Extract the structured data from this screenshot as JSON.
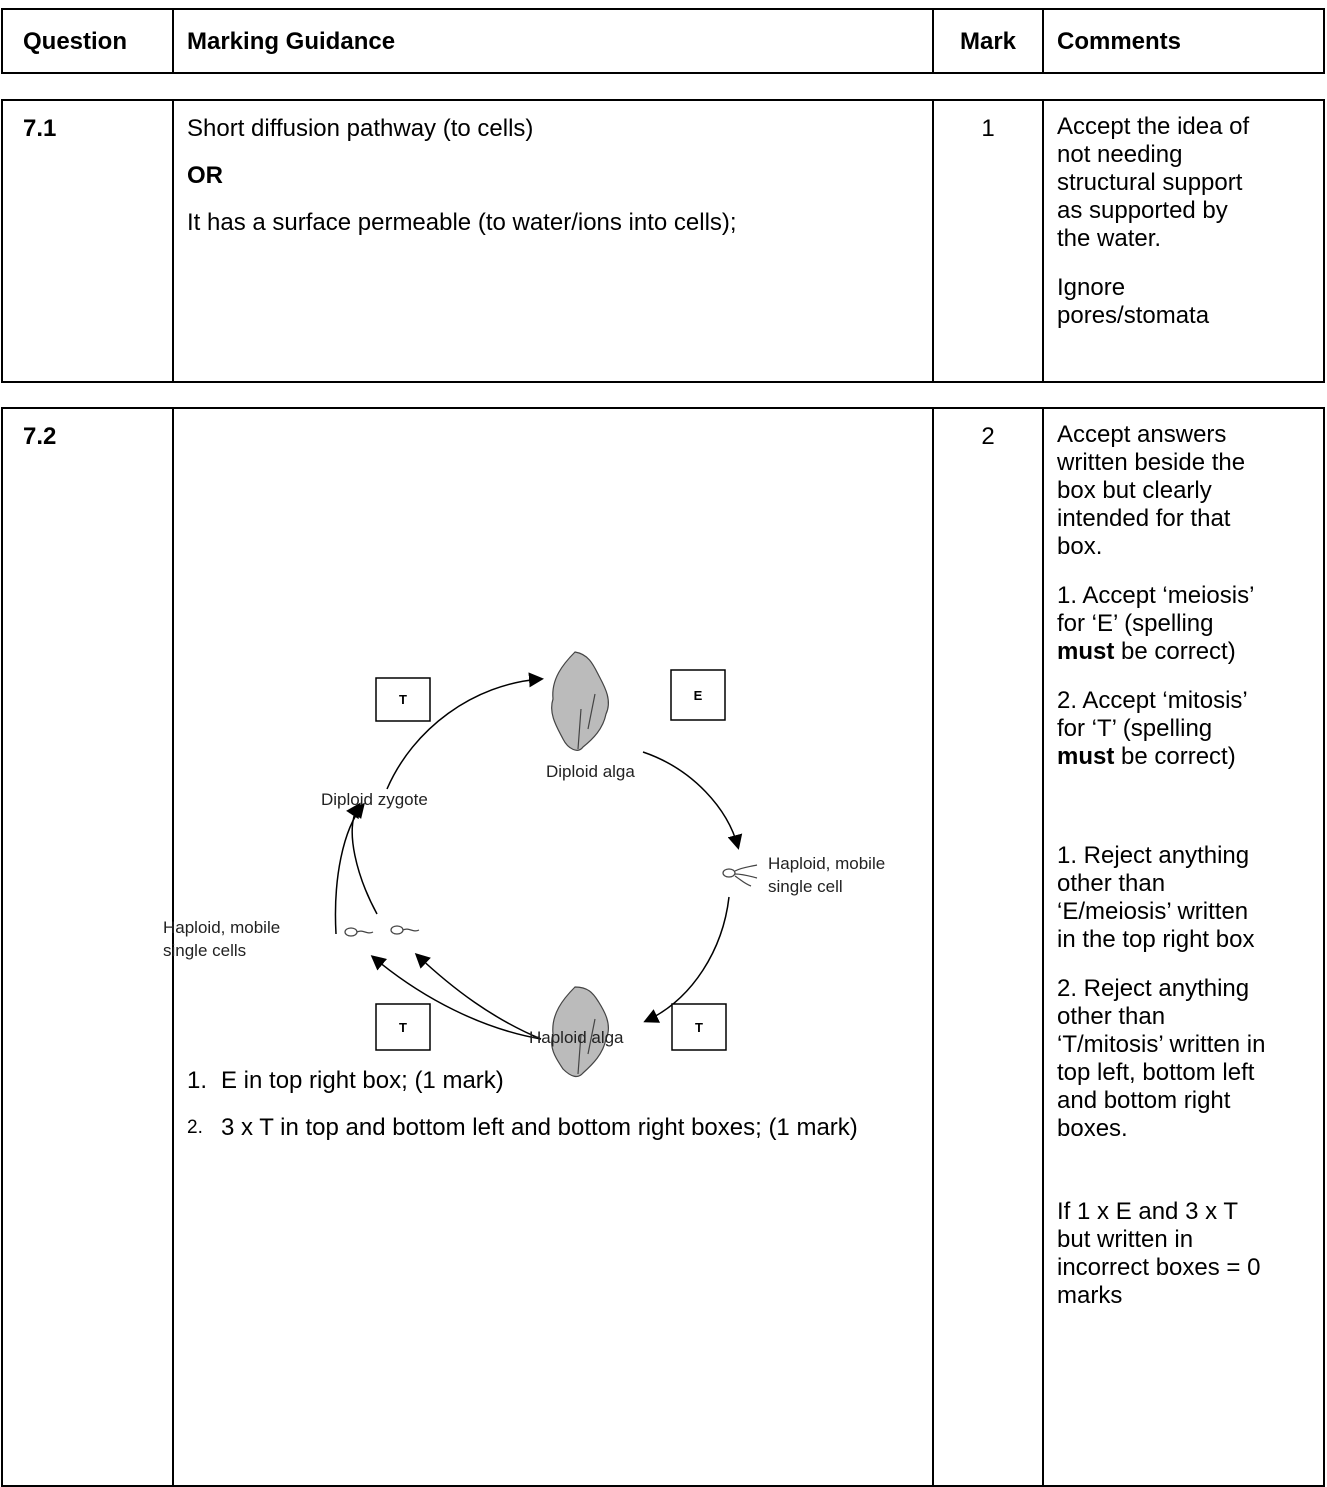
{
  "header": {
    "question": "Question",
    "guidance": "Marking Guidance",
    "mark": "Mark",
    "comments": "Comments"
  },
  "rows": [
    {
      "question": "7.1",
      "guidance": [
        "Short diffusion pathway (to cells)",
        "OR",
        "It has a surface permeable (to water/ions into cells);"
      ],
      "mark": 1,
      "comments": [
        [
          "Accept the idea of",
          "not needing",
          "structural support",
          "as supported by",
          "the water."
        ],
        [
          "Ignore",
          "pores/stomata"
        ]
      ]
    },
    {
      "question": "7.2",
      "diagram": {
        "boxes": [
          "T",
          "E",
          "T",
          "T"
        ],
        "labels": {
          "diploid_alga": [
            "Diploid alga"
          ],
          "diploid_zygote": [
            "Diploid zygote"
          ],
          "haploid_cell": [
            "Haploid, mobile",
            "single cell"
          ],
          "haploid_cells": [
            "Haploid, mobile",
            "single cells"
          ],
          "haploid_alga": [
            "Haploid alga"
          ]
        }
      },
      "guidance": [
        {
          "num": "1.",
          "text": "E in top right box; (1 mark)"
        },
        {
          "num": "2.",
          "text": "3 x T in top and bottom left and bottom right boxes; (1 mark)"
        }
      ],
      "mark": 2,
      "comments": [
        [
          "Accept answers",
          "written beside the",
          "box but clearly",
          "intended for that",
          "box."
        ],
        [
          "1. Accept ‘meiosis’",
          "for ‘E’ (spelling",
          {
            "bold": "must",
            "text": " be correct)"
          }
        ],
        [
          "2. Accept ‘mitosis’",
          "for ‘T’ (spelling",
          {
            "bold": "must",
            "text": " be correct)"
          }
        ],
        [
          "1. Reject anything",
          "other than",
          "‘E/meiosis’ written",
          "in the top right box"
        ],
        [
          "2. Reject anything",
          "other than",
          "‘T/mitosis’ written in",
          "top left, bottom left",
          "and bottom right",
          "boxes."
        ],
        [
          "If 1 x E and 3 x T",
          "but written in",
          "incorrect boxes = 0",
          "marks"
        ]
      ]
    }
  ]
}
